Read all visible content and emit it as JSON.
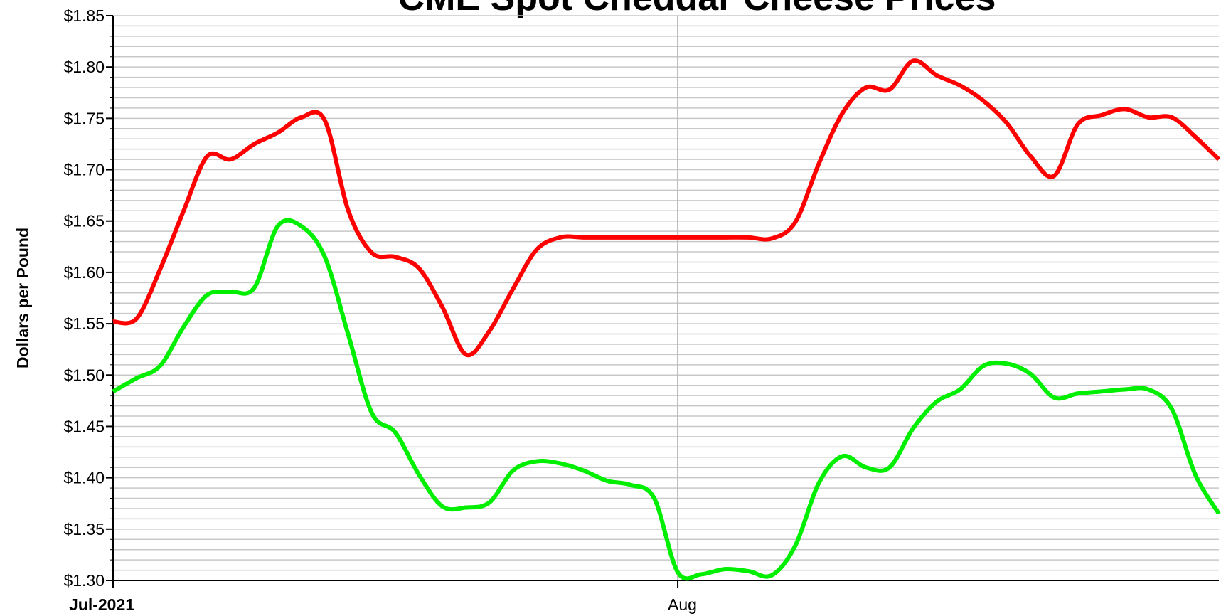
{
  "chart_data": {
    "type": "line",
    "title": "CME Spot Cheddar Cheese Prices",
    "ylabel": "Dollars per Pound",
    "categories": [
      "Jul-2021",
      null,
      null,
      null,
      null,
      null,
      null,
      null,
      null,
      null,
      null,
      null,
      null,
      null,
      null,
      null,
      null,
      null,
      null,
      null,
      null,
      null,
      null,
      null,
      "Aug",
      null,
      null,
      null,
      null,
      null,
      null,
      null,
      null,
      null,
      null,
      null,
      null,
      null,
      null,
      null,
      null,
      null,
      null,
      null,
      null,
      null,
      null,
      null
    ],
    "series": [
      {
        "color": "#ff0000",
        "values": [
          1.552,
          1.555,
          1.603,
          1.66,
          1.713,
          1.71,
          1.725,
          1.736,
          1.751,
          1.748,
          1.66,
          1.619,
          1.615,
          1.604,
          1.566,
          1.52,
          1.543,
          1.584,
          1.622,
          1.634,
          1.634,
          1.634,
          1.634,
          1.634,
          1.634,
          1.634,
          1.634,
          1.634,
          1.633,
          1.649,
          1.706,
          1.755,
          1.78,
          1.778,
          1.806,
          1.792,
          1.782,
          1.767,
          1.745,
          1.713,
          1.694,
          1.744,
          1.753,
          1.759,
          1.751,
          1.751,
          1.732,
          1.71
        ]
      },
      {
        "color": "#00ee00",
        "values": [
          1.484,
          1.497,
          1.509,
          1.547,
          1.578,
          1.581,
          1.585,
          1.645,
          1.645,
          1.615,
          1.539,
          1.463,
          1.444,
          1.403,
          1.372,
          1.371,
          1.376,
          1.407,
          1.416,
          1.414,
          1.407,
          1.397,
          1.393,
          1.38,
          1.308,
          1.306,
          1.311,
          1.309,
          1.305,
          1.334,
          1.395,
          1.421,
          1.41,
          1.41,
          1.448,
          1.474,
          1.486,
          1.509,
          1.511,
          1.501,
          1.478,
          1.482,
          1.484,
          1.486,
          1.486,
          1.467,
          1.403,
          1.365
        ]
      }
    ],
    "ylim": [
      1.3,
      1.85
    ],
    "yticks": [
      {
        "value": 1.3,
        "label": "$1.30"
      },
      {
        "value": 1.35,
        "label": "$1.35"
      },
      {
        "value": 1.4,
        "label": "$1.40"
      },
      {
        "value": 1.45,
        "label": "$1.45"
      },
      {
        "value": 1.5,
        "label": "$1.50"
      },
      {
        "value": 1.55,
        "label": "$1.55"
      },
      {
        "value": 1.6,
        "label": "$1.60"
      },
      {
        "value": 1.65,
        "label": "$1.65"
      },
      {
        "value": 1.7,
        "label": "$1.70"
      },
      {
        "value": 1.75,
        "label": "$1.75"
      },
      {
        "value": 1.8,
        "label": "$1.80"
      },
      {
        "value": 1.85,
        "label": "$1.85"
      }
    ],
    "minor_yticks": [
      1.31,
      1.32,
      1.33,
      1.34,
      1.36,
      1.37,
      1.38,
      1.39,
      1.41,
      1.42,
      1.43,
      1.44,
      1.46,
      1.47,
      1.48,
      1.49,
      1.51,
      1.52,
      1.53,
      1.54,
      1.56,
      1.57,
      1.58,
      1.59,
      1.61,
      1.62,
      1.63,
      1.64,
      1.66,
      1.67,
      1.68,
      1.69,
      1.71,
      1.72,
      1.73,
      1.74,
      1.76,
      1.77,
      1.78,
      1.79,
      1.81,
      1.82,
      1.83,
      1.84
    ],
    "grid": true
  }
}
